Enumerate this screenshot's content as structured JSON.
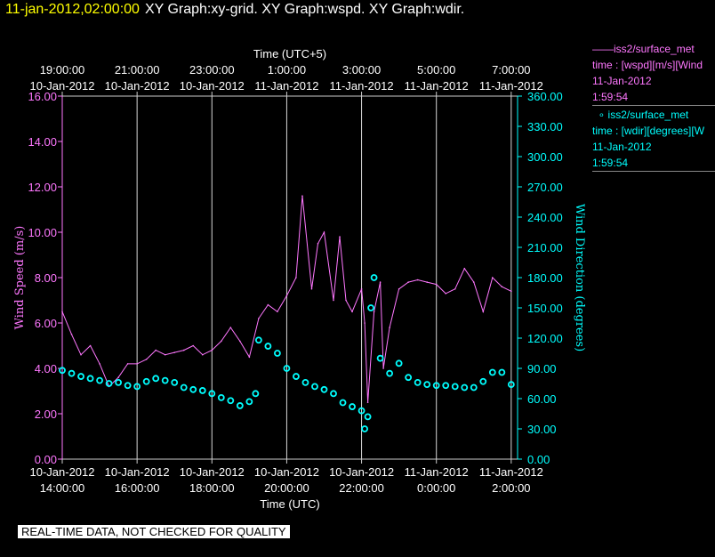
{
  "header": {
    "timestamp": "11-jan-2012,02:00:00",
    "graphs": "XY Graph:xy-grid.  XY Graph:wspd.  XY Graph:wdir."
  },
  "legend": [
    {
      "mark": "——",
      "name": "iss2/surface_met",
      "desc": "time : [wspd][m/s][Wind",
      "date": "11-Jan-2012",
      "time": "1:59:54"
    },
    {
      "mark": "∘",
      "name": "iss2/surface_met",
      "desc": "time : [wdir][degrees][W",
      "date": "11-Jan-2012",
      "time": "1:59:54"
    }
  ],
  "disclaimer": "REAL-TIME DATA, NOT CHECKED FOR QUALITY",
  "colors": {
    "wspd": "#ff77ff",
    "wdir": "#00ffff",
    "grid": "#ffffff",
    "header": "#ffff00"
  },
  "chart_data": {
    "type": "line",
    "x_bottom_label": "Time (UTC)",
    "x_top_label": "Time (UTC+5)",
    "x_range_hours_utc": [
      14,
      26.17
    ],
    "bottom_ticks": [
      {
        "date": "10-Jan-2012",
        "time": "14:00:00"
      },
      {
        "date": "10-Jan-2012",
        "time": "16:00:00"
      },
      {
        "date": "10-Jan-2012",
        "time": "18:00:00"
      },
      {
        "date": "10-Jan-2012",
        "time": "20:00:00"
      },
      {
        "date": "10-Jan-2012",
        "time": "22:00:00"
      },
      {
        "date": "11-Jan-2012",
        "time": "0:00:00"
      },
      {
        "date": "11-Jan-2012",
        "time": "2:00:00"
      }
    ],
    "top_ticks": [
      {
        "time": "19:00:00",
        "date": "10-Jan-2012"
      },
      {
        "time": "21:00:00",
        "date": "10-Jan-2012"
      },
      {
        "time": "23:00:00",
        "date": "10-Jan-2012"
      },
      {
        "time": "1:00:00",
        "date": "11-Jan-2012"
      },
      {
        "time": "3:00:00",
        "date": "11-Jan-2012"
      },
      {
        "time": "5:00:00",
        "date": "11-Jan-2012"
      },
      {
        "time": "7:00:00",
        "date": "11-Jan-2012"
      }
    ],
    "y_left": {
      "label": "Wind Speed (m/s)",
      "ylim": [
        0,
        16
      ],
      "ticks": [
        "0.00",
        "2.00",
        "4.00",
        "6.00",
        "8.00",
        "10.00",
        "12.00",
        "14.00",
        "16.00"
      ]
    },
    "y_right": {
      "label": "Wind Direction (degrees)",
      "ylim": [
        0,
        360
      ],
      "ticks": [
        "0.00",
        "30.00",
        "60.00",
        "90.00",
        "120.00",
        "150.00",
        "180.00",
        "210.00",
        "240.00",
        "270.00",
        "300.00",
        "330.00",
        "360.00"
      ]
    },
    "grid": "vertical",
    "series": [
      {
        "name": "iss2/surface_met wspd",
        "axis": "left",
        "style": "line",
        "x": [
          "10-Jan-2012 14:00",
          "10-Jan-2012 14:15",
          "10-Jan-2012 14:30",
          "10-Jan-2012 14:45",
          "10-Jan-2012 15:00",
          "10-Jan-2012 15:15",
          "10-Jan-2012 15:30",
          "10-Jan-2012 15:45",
          "10-Jan-2012 16:00",
          "10-Jan-2012 16:15",
          "10-Jan-2012 16:30",
          "10-Jan-2012 16:45",
          "10-Jan-2012 17:00",
          "10-Jan-2012 17:15",
          "10-Jan-2012 17:30",
          "10-Jan-2012 17:45",
          "10-Jan-2012 18:00",
          "10-Jan-2012 18:15",
          "10-Jan-2012 18:30",
          "10-Jan-2012 18:45",
          "10-Jan-2012 19:00",
          "10-Jan-2012 19:15",
          "10-Jan-2012 19:30",
          "10-Jan-2012 19:45",
          "10-Jan-2012 20:00",
          "10-Jan-2012 20:15",
          "10-Jan-2012 20:25",
          "10-Jan-2012 20:40",
          "10-Jan-2012 20:50",
          "10-Jan-2012 21:00",
          "10-Jan-2012 21:15",
          "10-Jan-2012 21:25",
          "10-Jan-2012 21:35",
          "10-Jan-2012 21:45",
          "10-Jan-2012 22:00",
          "10-Jan-2012 22:05",
          "10-Jan-2012 22:10",
          "10-Jan-2012 22:20",
          "10-Jan-2012 22:30",
          "10-Jan-2012 22:35",
          "10-Jan-2012 22:45",
          "10-Jan-2012 23:00",
          "10-Jan-2012 23:15",
          "10-Jan-2012 23:30",
          "10-Jan-2012 23:45",
          "11-Jan-2012 0:00",
          "11-Jan-2012 0:15",
          "11-Jan-2012 0:30",
          "11-Jan-2012 0:45",
          "11-Jan-2012 1:00",
          "11-Jan-2012 1:15",
          "11-Jan-2012 1:30",
          "11-Jan-2012 1:45",
          "11-Jan-2012 2:00"
        ],
        "values": [
          6.5,
          5.5,
          4.6,
          5.0,
          4.2,
          3.2,
          3.6,
          4.2,
          4.2,
          4.4,
          4.8,
          4.6,
          4.7,
          4.8,
          5.0,
          4.6,
          4.8,
          5.2,
          5.8,
          5.2,
          4.5,
          6.2,
          6.8,
          6.5,
          7.2,
          8.0,
          11.6,
          7.5,
          9.5,
          10.0,
          7.0,
          9.8,
          7.0,
          6.5,
          7.5,
          6.0,
          2.5,
          6.5,
          7.8,
          4.0,
          5.8,
          7.5,
          7.8,
          7.9,
          7.8,
          7.7,
          7.3,
          7.5,
          8.4,
          7.8,
          6.5,
          8.0,
          7.6,
          7.4
        ]
      },
      {
        "name": "iss2/surface_met wdir",
        "axis": "right",
        "style": "circles",
        "x": [
          "10-Jan-2012 14:00",
          "10-Jan-2012 14:15",
          "10-Jan-2012 14:30",
          "10-Jan-2012 14:45",
          "10-Jan-2012 15:00",
          "10-Jan-2012 15:15",
          "10-Jan-2012 15:30",
          "10-Jan-2012 15:45",
          "10-Jan-2012 16:00",
          "10-Jan-2012 16:15",
          "10-Jan-2012 16:30",
          "10-Jan-2012 16:45",
          "10-Jan-2012 17:00",
          "10-Jan-2012 17:15",
          "10-Jan-2012 17:30",
          "10-Jan-2012 17:45",
          "10-Jan-2012 18:00",
          "10-Jan-2012 18:15",
          "10-Jan-2012 18:30",
          "10-Jan-2012 18:45",
          "10-Jan-2012 19:00",
          "10-Jan-2012 19:10",
          "10-Jan-2012 19:15",
          "10-Jan-2012 19:30",
          "10-Jan-2012 19:45",
          "10-Jan-2012 20:00",
          "10-Jan-2012 20:15",
          "10-Jan-2012 20:30",
          "10-Jan-2012 20:45",
          "10-Jan-2012 21:00",
          "10-Jan-2012 21:15",
          "10-Jan-2012 21:30",
          "10-Jan-2012 21:45",
          "10-Jan-2012 22:00",
          "10-Jan-2012 22:05",
          "10-Jan-2012 22:10",
          "10-Jan-2012 22:15",
          "10-Jan-2012 22:20",
          "10-Jan-2012 22:30",
          "10-Jan-2012 22:45",
          "10-Jan-2012 23:00",
          "10-Jan-2012 23:15",
          "10-Jan-2012 23:30",
          "10-Jan-2012 23:45",
          "11-Jan-2012 0:00",
          "11-Jan-2012 0:15",
          "11-Jan-2012 0:30",
          "11-Jan-2012 0:45",
          "11-Jan-2012 1:00",
          "11-Jan-2012 1:15",
          "11-Jan-2012 1:30",
          "11-Jan-2012 1:45",
          "11-Jan-2012 2:00"
        ],
        "values": [
          88,
          85,
          82,
          80,
          78,
          75,
          76,
          73,
          72,
          77,
          80,
          78,
          76,
          71,
          69,
          68,
          65,
          61,
          58,
          53,
          57,
          65,
          118,
          112,
          105,
          90,
          82,
          76,
          72,
          69,
          65,
          56,
          52,
          48,
          30,
          42,
          150,
          180,
          100,
          85,
          95,
          81,
          76,
          74,
          73,
          73,
          72,
          71,
          71,
          77,
          86,
          86,
          74
        ]
      }
    ]
  }
}
